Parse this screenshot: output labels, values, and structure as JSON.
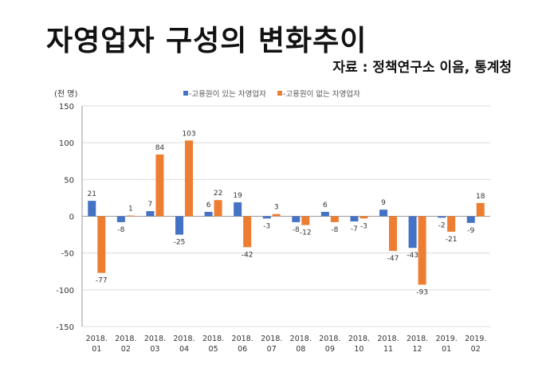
{
  "title": "자영업자 구성의 변화추이",
  "source": "자료 : 정책연구소 이음, 통계청",
  "chart_data": {
    "type": "bar",
    "unit_label": "(천 명)",
    "categories": [
      [
        "2018.",
        "01"
      ],
      [
        "2018.",
        "02"
      ],
      [
        "2018.",
        "03"
      ],
      [
        "2018.",
        "04"
      ],
      [
        "2018.",
        "05"
      ],
      [
        "2018.",
        "06"
      ],
      [
        "2018.",
        "07"
      ],
      [
        "2018.",
        "08"
      ],
      [
        "2018.",
        "09"
      ],
      [
        "2018.",
        "10"
      ],
      [
        "2018.",
        "11"
      ],
      [
        "2018.",
        "12"
      ],
      [
        "2019.",
        "01"
      ],
      [
        "2019.",
        "02"
      ]
    ],
    "series": [
      {
        "name": "■-고용원이 있는 자영업자",
        "color": "#4472C4",
        "values": [
          21,
          -8,
          7,
          -25,
          6,
          19,
          -3,
          -8,
          6,
          -7,
          9,
          -43,
          -2,
          -9
        ]
      },
      {
        "name": "■-고용원이 없는 자영업자",
        "color": "#ED7D31",
        "values": [
          -77,
          1,
          84,
          103,
          22,
          -42,
          3,
          -12,
          -8,
          -3,
          -47,
          -93,
          -21,
          18
        ]
      }
    ],
    "ylim": [
      -150,
      150
    ],
    "yticks": [
      150,
      100,
      50,
      0,
      -50,
      -100,
      -150
    ],
    "grid": true,
    "legend": "top"
  }
}
